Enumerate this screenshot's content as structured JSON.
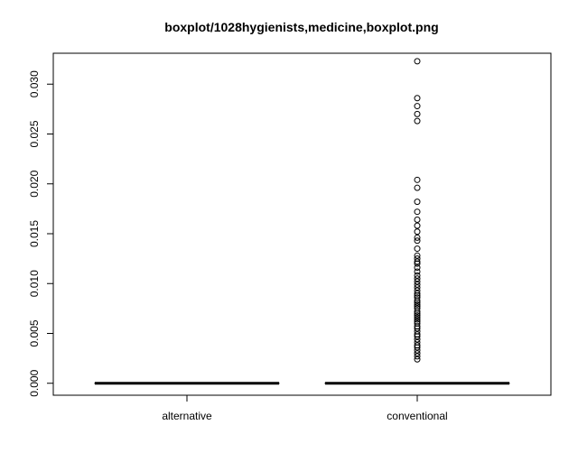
{
  "chart_data": {
    "type": "boxplot",
    "title": "boxplot/1028hygienists,medicine,boxplot.png",
    "xlabel": "",
    "ylabel": "",
    "ylim": [
      -0.0012,
      0.0331
    ],
    "y_ticks": [
      0.0,
      0.005,
      0.01,
      0.015,
      0.02,
      0.025,
      0.03
    ],
    "y_tick_labels": [
      "0.000",
      "0.005",
      "0.010",
      "0.015",
      "0.020",
      "0.025",
      "0.030"
    ],
    "categories": [
      "alternative",
      "conventional"
    ],
    "series": [
      {
        "name": "alternative",
        "q1": 0.0,
        "median": 0.0,
        "q3": 0.0,
        "whisker_low": 0.0,
        "whisker_high": 0.0,
        "outliers": []
      },
      {
        "name": "conventional",
        "q1": 0.0,
        "median": 0.0,
        "q3": 0.0,
        "whisker_low": 0.0,
        "whisker_high": 0.0,
        "outliers": [
          0.0323,
          0.0286,
          0.0278,
          0.027,
          0.0263,
          0.0204,
          0.0196,
          0.0182,
          0.0172,
          0.0164,
          0.0158,
          0.0152,
          0.0146,
          0.0143,
          0.0135,
          0.0128,
          0.0125,
          0.0122,
          0.012,
          0.0116,
          0.0112,
          0.0108,
          0.0105,
          0.0102,
          0.0099,
          0.0096,
          0.0093,
          0.009,
          0.0088,
          0.0086,
          0.0083,
          0.0081,
          0.0079,
          0.0077,
          0.0075,
          0.0072,
          0.007,
          0.0068,
          0.0066,
          0.0064,
          0.0062,
          0.006,
          0.0057,
          0.0055,
          0.0052,
          0.0049,
          0.0047,
          0.0044,
          0.0041,
          0.0038,
          0.0036,
          0.0033,
          0.003,
          0.0027,
          0.0024
        ]
      }
    ]
  }
}
